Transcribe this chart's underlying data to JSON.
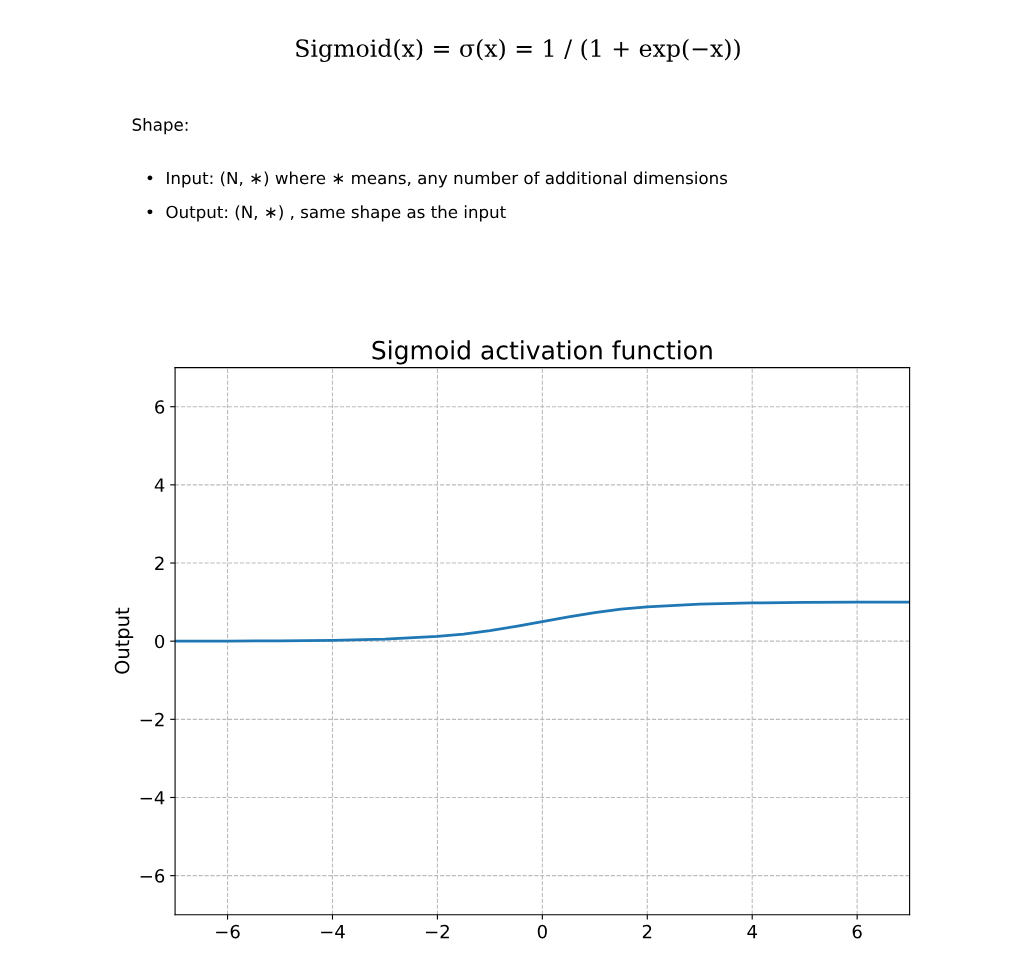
{
  "chart_data": {
    "type": "line",
    "title": "Sigmoid activation function",
    "ylabel": "Output",
    "annotations": [
      "Sigmoid(x) = σ(x) = 1 / (1 + exp(−x))",
      "Shape:",
      "•  Input: (N, ∗) where ∗ means, any number of additional dimensions",
      "•  Output: (N, ∗) , same shape as the input"
    ],
    "x": [
      -7,
      -6,
      -5,
      -4,
      -3,
      -2,
      -1.5,
      -1,
      -0.5,
      0,
      0.5,
      1,
      1.5,
      2,
      3,
      4,
      5,
      6,
      7
    ],
    "series": [
      {
        "color": "#1f77b4",
        "values": [
          0.0,
          0.0,
          0.01,
          0.02,
          0.05,
          0.12,
          0.18,
          0.27,
          0.38,
          0.5,
          0.62,
          0.73,
          0.82,
          0.88,
          0.95,
          0.98,
          0.99,
          1.0,
          1.0
        ]
      }
    ],
    "xlim": [
      -7,
      7
    ],
    "ylim": [
      -7,
      7
    ],
    "xticks": [
      -6,
      -4,
      -2,
      0,
      2,
      4,
      6
    ],
    "yticks": [
      -6,
      -4,
      -2,
      0,
      2,
      4,
      6
    ],
    "grid": true
  }
}
